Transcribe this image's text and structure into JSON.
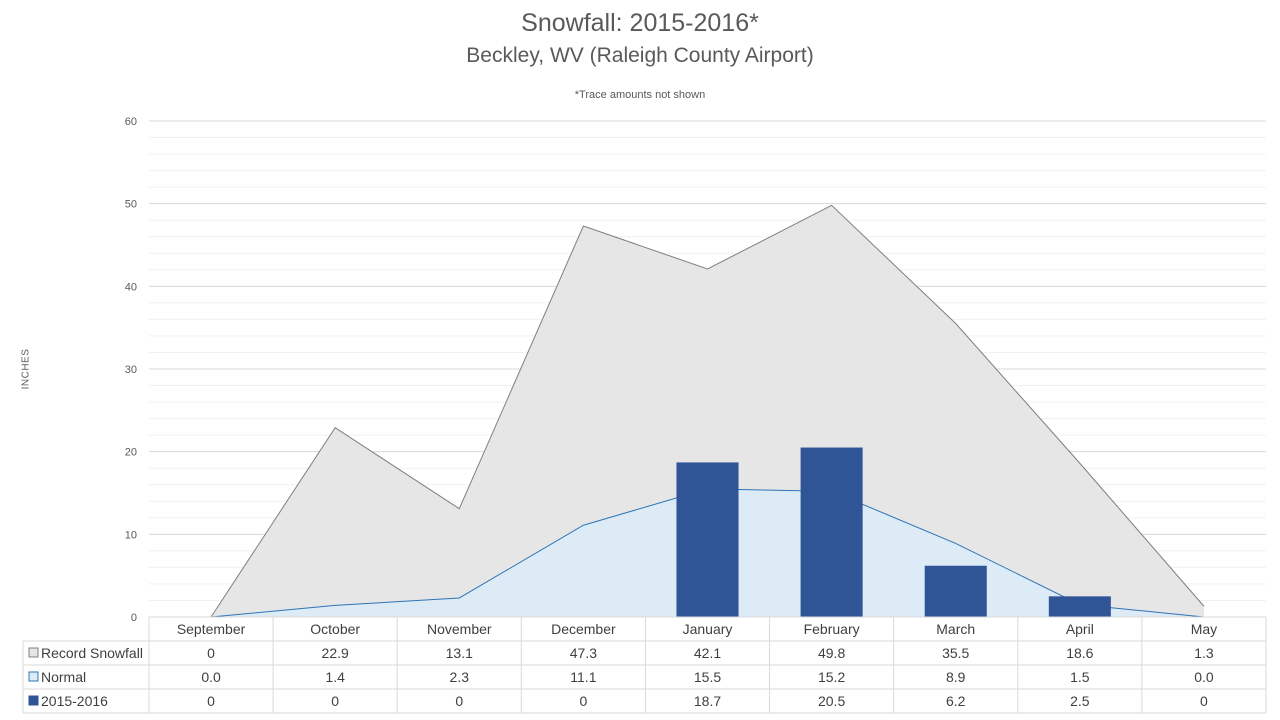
{
  "chart_data": {
    "type": "bar",
    "title": "Snowfall: 2015-2016*",
    "subtitle": "Beckley, WV (Raleigh County Airport)",
    "note": "*Trace amounts not shown",
    "ylabel": "INCHES",
    "ylim": [
      0,
      60
    ],
    "yticks": [
      "0",
      "10",
      "20",
      "30",
      "40",
      "50",
      "60"
    ],
    "grid": true,
    "legend": "table-bottom",
    "categories": [
      "September",
      "October",
      "November",
      "December",
      "January",
      "February",
      "March",
      "April",
      "May"
    ],
    "series": [
      {
        "name": "Record Snowfall",
        "type": "area",
        "color": "#e7e6e6",
        "stroke": "#7f7f7f",
        "values": [
          0,
          22.9,
          13.1,
          47.3,
          42.1,
          49.8,
          35.5,
          18.6,
          1.3
        ],
        "labels": [
          "0",
          "22.9",
          "13.1",
          "47.3",
          "42.1",
          "49.8",
          "35.5",
          "18.6",
          "1.3"
        ]
      },
      {
        "name": "Normal",
        "type": "area",
        "color": "#ddebf7",
        "stroke": "#2e75b6",
        "values": [
          0.0,
          1.4,
          2.3,
          11.1,
          15.5,
          15.2,
          8.9,
          1.5,
          0.0
        ],
        "labels": [
          "0.0",
          "1.4",
          "2.3",
          "11.1",
          "15.5",
          "15.2",
          "8.9",
          "1.5",
          "0.0"
        ]
      },
      {
        "name": "2015-2016",
        "type": "bar",
        "color": "#2f5597",
        "values": [
          0,
          0,
          0,
          0,
          18.7,
          20.5,
          6.2,
          2.5,
          0
        ],
        "labels": [
          "0",
          "0",
          "0",
          "0",
          "18.7",
          "20.5",
          "6.2",
          "2.5",
          "0"
        ]
      }
    ]
  }
}
